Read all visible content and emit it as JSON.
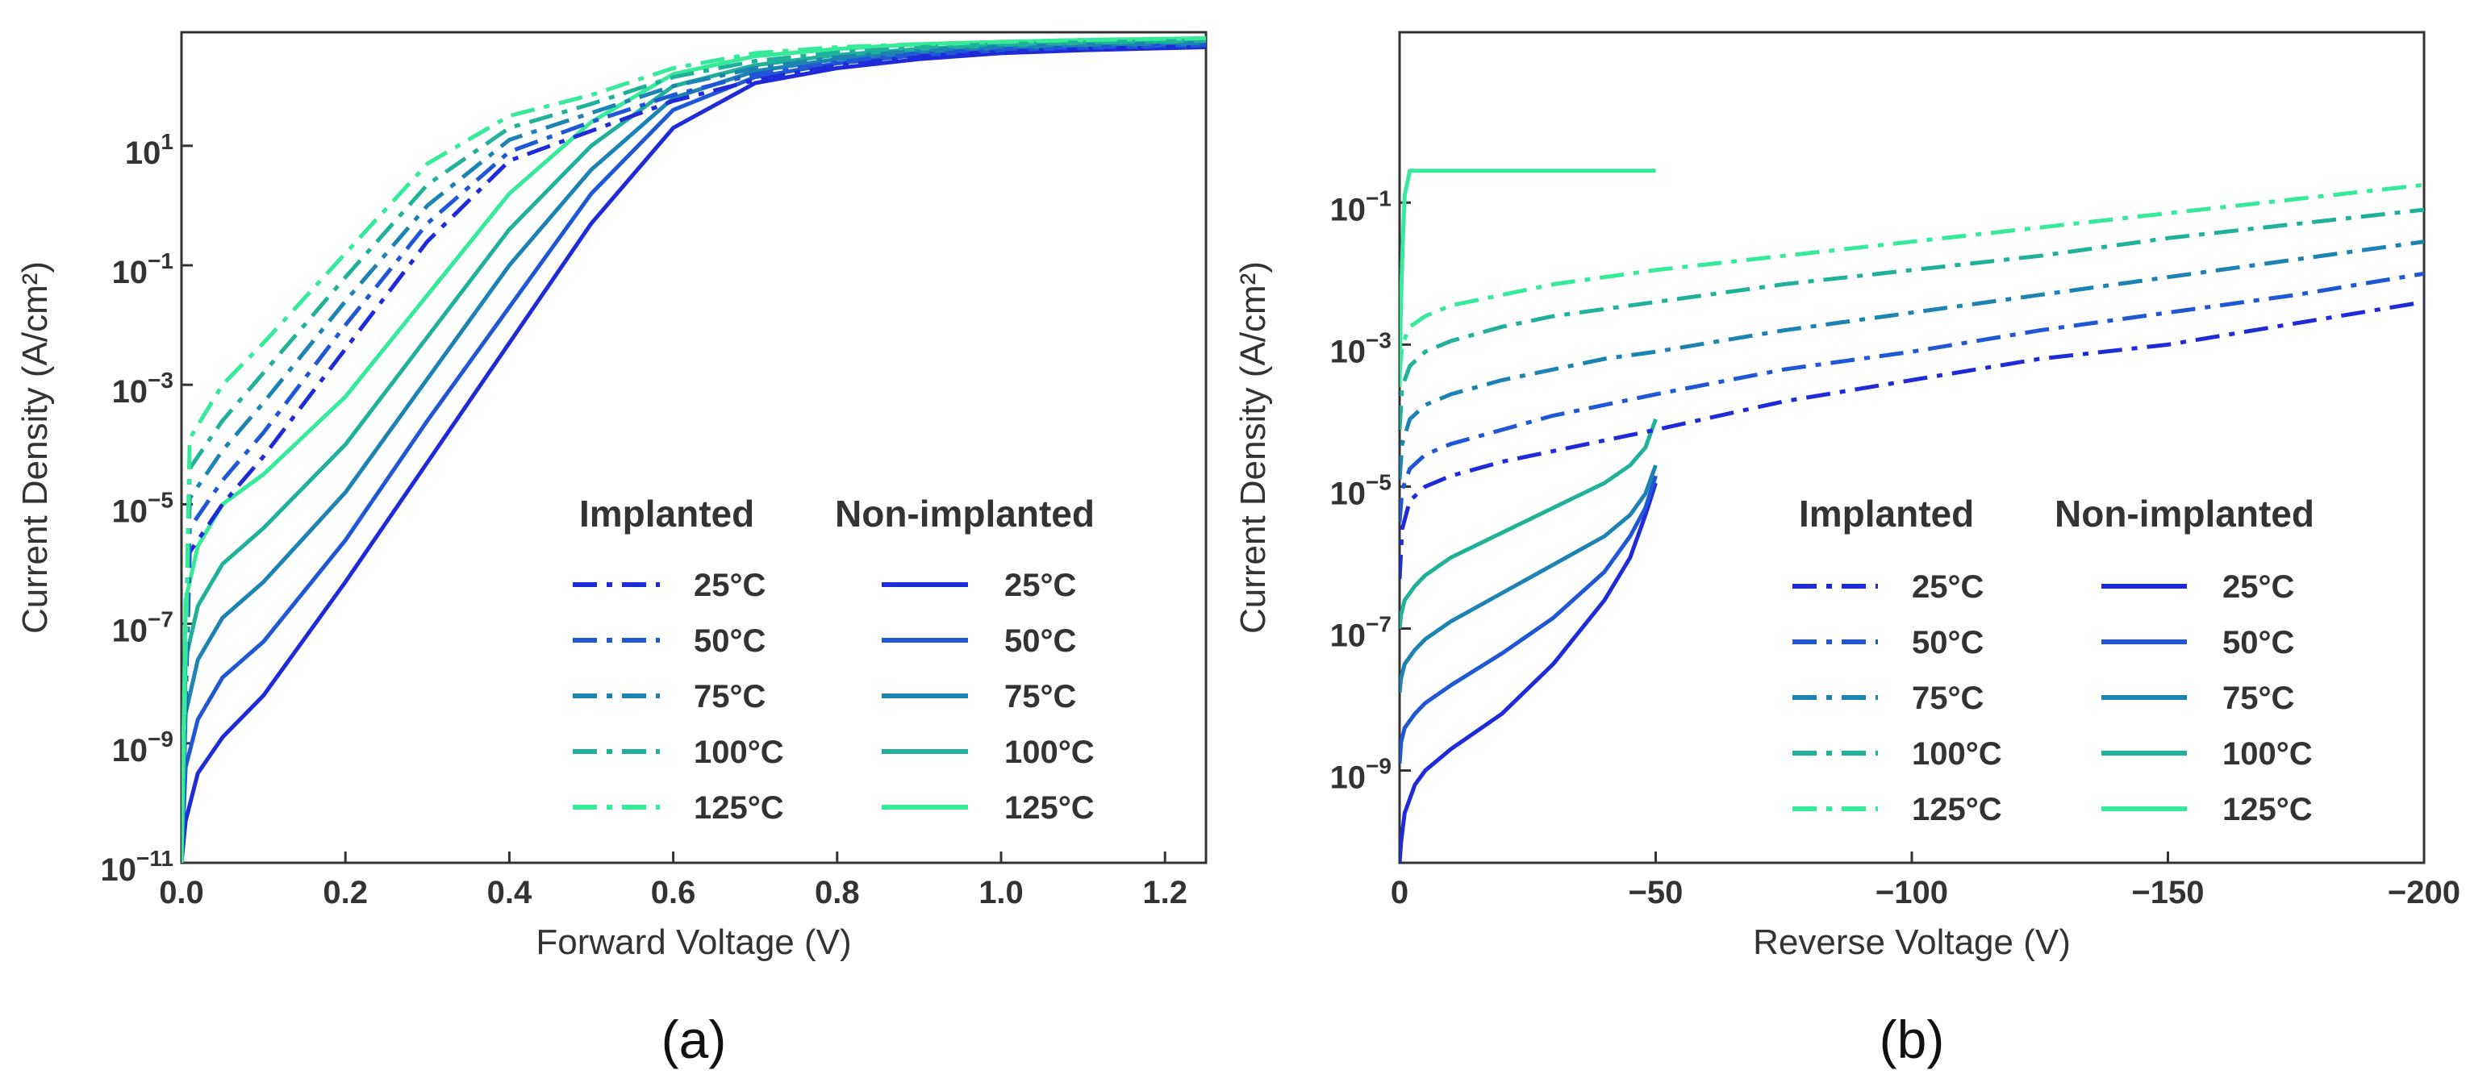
{
  "chart_data": [
    {
      "panel_label": "(a)",
      "type": "line",
      "xlabel": "Forward Voltage (V)",
      "ylabel": "Current Density (A/cm²)",
      "xscale": "linear",
      "yscale": "log",
      "xlim": [
        0.0,
        1.25
      ],
      "ylim_exp": [
        -11,
        2.9
      ],
      "x_ticks": [
        0.0,
        0.2,
        0.4,
        0.6,
        0.8,
        1.0,
        1.2
      ],
      "x_tick_labels": [
        "0.0",
        "0.2",
        "0.4",
        "0.6",
        "0.8",
        "1.0",
        "1.2"
      ],
      "y_ticks_exp": [
        -11,
        -9,
        -7,
        -5,
        -3,
        -1,
        1
      ],
      "y_tick_labels": [
        [
          "10",
          "−11"
        ],
        [
          "10",
          "−9"
        ],
        [
          "10",
          "−7"
        ],
        [
          "10",
          "−5"
        ],
        [
          "10",
          "−3"
        ],
        [
          "10",
          "−1"
        ],
        [
          "10",
          "1"
        ]
      ],
      "legend": {
        "placement": "bottom-right",
        "group_titles": [
          "Implanted",
          "Non-implanted"
        ],
        "temperatures": [
          "25°C",
          "50°C",
          "75°C",
          "100°C",
          "125°C"
        ]
      },
      "series_implanted": [
        {
          "name": "25°C",
          "x": [
            0.0,
            0.01,
            0.05,
            0.1,
            0.2,
            0.3,
            0.4,
            0.5,
            0.6,
            0.7,
            0.8,
            0.9,
            1.0,
            1.1,
            1.25
          ],
          "log10_y": [
            -11.0,
            -5.8,
            -5.0,
            -4.2,
            -2.4,
            -0.6,
            0.75,
            1.25,
            1.75,
            2.1,
            2.35,
            2.5,
            2.58,
            2.62,
            2.67
          ]
        },
        {
          "name": "50°C",
          "x": [
            0.0,
            0.01,
            0.05,
            0.1,
            0.2,
            0.3,
            0.4,
            0.5,
            0.6,
            0.7,
            0.8,
            0.9,
            1.0,
            1.1,
            1.25
          ],
          "log10_y": [
            -11.0,
            -5.4,
            -4.6,
            -3.8,
            -2.0,
            -0.3,
            0.9,
            1.4,
            1.85,
            2.2,
            2.4,
            2.55,
            2.62,
            2.65,
            2.69
          ]
        },
        {
          "name": "75°C",
          "x": [
            0.0,
            0.01,
            0.05,
            0.1,
            0.2,
            0.3,
            0.4,
            0.5,
            0.6,
            0.7,
            0.8,
            0.9,
            1.0,
            1.1,
            1.25
          ],
          "log10_y": [
            -11.0,
            -4.9,
            -4.1,
            -3.3,
            -1.6,
            0.0,
            1.1,
            1.55,
            2.0,
            2.3,
            2.48,
            2.6,
            2.66,
            2.69,
            2.72
          ]
        },
        {
          "name": "100°C",
          "x": [
            0.0,
            0.01,
            0.05,
            0.1,
            0.2,
            0.3,
            0.4,
            0.5,
            0.6,
            0.7,
            0.8,
            0.9,
            1.0,
            1.1,
            1.25
          ],
          "log10_y": [
            -11.0,
            -4.4,
            -3.6,
            -2.8,
            -1.2,
            0.35,
            1.3,
            1.7,
            2.15,
            2.42,
            2.56,
            2.65,
            2.7,
            2.73,
            2.76
          ]
        },
        {
          "name": "125°C",
          "x": [
            0.0,
            0.01,
            0.05,
            0.1,
            0.2,
            0.3,
            0.4,
            0.5,
            0.6,
            0.7,
            0.8,
            0.9,
            1.0,
            1.1,
            1.25
          ],
          "log10_y": [
            -11.0,
            -3.9,
            -3.0,
            -2.3,
            -0.8,
            0.7,
            1.5,
            1.85,
            2.3,
            2.55,
            2.65,
            2.7,
            2.74,
            2.77,
            2.8
          ]
        }
      ],
      "series_non_implanted": [
        {
          "name": "25°C",
          "x": [
            0.0,
            0.005,
            0.02,
            0.05,
            0.1,
            0.2,
            0.3,
            0.4,
            0.5,
            0.6,
            0.7,
            0.8,
            0.9,
            1.0,
            1.1,
            1.25
          ],
          "log10_y": [
            -11.0,
            -10.3,
            -9.5,
            -8.9,
            -8.2,
            -6.3,
            -4.3,
            -2.3,
            -0.3,
            1.3,
            2.05,
            2.3,
            2.45,
            2.55,
            2.6,
            2.65
          ]
        },
        {
          "name": "50°C",
          "x": [
            0.0,
            0.005,
            0.02,
            0.05,
            0.1,
            0.2,
            0.3,
            0.4,
            0.5,
            0.6,
            0.7,
            0.8,
            0.9,
            1.0,
            1.1,
            1.25
          ],
          "log10_y": [
            -11.0,
            -9.4,
            -8.6,
            -7.9,
            -7.3,
            -5.6,
            -3.6,
            -1.7,
            0.2,
            1.6,
            2.15,
            2.38,
            2.52,
            2.6,
            2.64,
            2.68
          ]
        },
        {
          "name": "75°C",
          "x": [
            0.0,
            0.005,
            0.02,
            0.05,
            0.1,
            0.2,
            0.3,
            0.4,
            0.5,
            0.6,
            0.7,
            0.8,
            0.9,
            1.0,
            1.1,
            1.25
          ],
          "log10_y": [
            -11.0,
            -8.5,
            -7.6,
            -6.9,
            -6.3,
            -4.8,
            -2.9,
            -1.0,
            0.6,
            1.8,
            2.25,
            2.45,
            2.57,
            2.64,
            2.68,
            2.71
          ]
        },
        {
          "name": "100°C",
          "x": [
            0.0,
            0.005,
            0.02,
            0.05,
            0.1,
            0.2,
            0.3,
            0.4,
            0.5,
            0.6,
            0.7,
            0.8,
            0.9,
            1.0,
            1.1,
            1.25
          ],
          "log10_y": [
            -11.0,
            -7.6,
            -6.7,
            -6.0,
            -5.4,
            -4.0,
            -2.2,
            -0.4,
            1.0,
            2.0,
            2.35,
            2.52,
            2.62,
            2.68,
            2.72,
            2.75
          ]
        },
        {
          "name": "125°C",
          "x": [
            0.0,
            0.005,
            0.02,
            0.05,
            0.1,
            0.2,
            0.3,
            0.4,
            0.5,
            0.6,
            0.7,
            0.8,
            0.9,
            1.0,
            1.1,
            1.25
          ],
          "log10_y": [
            -11.0,
            -6.6,
            -5.7,
            -5.0,
            -4.5,
            -3.2,
            -1.5,
            0.2,
            1.4,
            2.2,
            2.5,
            2.62,
            2.7,
            2.74,
            2.77,
            2.8
          ]
        }
      ]
    },
    {
      "panel_label": "(b)",
      "type": "line",
      "xlabel": "Reverse Voltage (V)",
      "ylabel": "Current Density (A/cm²)",
      "xscale": "linear",
      "yscale": "log",
      "xlim": [
        0,
        -200
      ],
      "ylim_exp": [
        -10.3,
        1.4
      ],
      "x_ticks": [
        0,
        -50,
        -100,
        -150,
        -200
      ],
      "x_tick_labels": [
        "0",
        "−50",
        "−100",
        "−150",
        "−200"
      ],
      "y_ticks_exp": [
        -9,
        -7,
        -5,
        -3,
        -1
      ],
      "y_tick_labels": [
        [
          "10",
          "−9"
        ],
        [
          "10",
          "−7"
        ],
        [
          "10",
          "−5"
        ],
        [
          "10",
          "−3"
        ],
        [
          "10",
          "−1"
        ]
      ],
      "legend": {
        "placement": "bottom-right",
        "group_titles": [
          "Implanted",
          "Non-implanted"
        ],
        "temperatures": [
          "25°C",
          "50°C",
          "75°C",
          "100°C",
          "125°C"
        ]
      },
      "series_implanted": [
        {
          "name": "25°C",
          "x": [
            0,
            -0.5,
            -2,
            -5,
            -10,
            -20,
            -30,
            -40,
            -50,
            -75,
            -100,
            -125,
            -150,
            -175,
            -200
          ],
          "log10_y": [
            -6.3,
            -5.6,
            -5.2,
            -5.0,
            -4.85,
            -4.65,
            -4.5,
            -4.35,
            -4.2,
            -3.8,
            -3.5,
            -3.2,
            -3.0,
            -2.7,
            -2.4
          ]
        },
        {
          "name": "50°C",
          "x": [
            0,
            -0.5,
            -2,
            -5,
            -10,
            -20,
            -30,
            -40,
            -50,
            -75,
            -100,
            -125,
            -150,
            -175,
            -200
          ],
          "log10_y": [
            -5.5,
            -5.05,
            -4.75,
            -4.55,
            -4.4,
            -4.2,
            -4.0,
            -3.85,
            -3.7,
            -3.35,
            -3.1,
            -2.8,
            -2.55,
            -2.3,
            -2.0
          ]
        },
        {
          "name": "75°C",
          "x": [
            0,
            -0.5,
            -2,
            -5,
            -10,
            -20,
            -30,
            -40,
            -50,
            -75,
            -100,
            -125,
            -150,
            -175,
            -200
          ],
          "log10_y": [
            -4.9,
            -4.4,
            -4.05,
            -3.85,
            -3.7,
            -3.5,
            -3.35,
            -3.2,
            -3.1,
            -2.8,
            -2.55,
            -2.3,
            -2.05,
            -1.8,
            -1.55
          ]
        },
        {
          "name": "100°C",
          "x": [
            0,
            -0.5,
            -2,
            -5,
            -10,
            -20,
            -30,
            -40,
            -50,
            -75,
            -100,
            -125,
            -150,
            -175,
            -200
          ],
          "log10_y": [
            -4.2,
            -3.6,
            -3.3,
            -3.1,
            -2.95,
            -2.75,
            -2.6,
            -2.5,
            -2.4,
            -2.15,
            -1.95,
            -1.75,
            -1.5,
            -1.3,
            -1.1
          ]
        },
        {
          "name": "125°C",
          "x": [
            0,
            -0.5,
            -2,
            -5,
            -10,
            -20,
            -30,
            -40,
            -50,
            -75,
            -100,
            -125,
            -150,
            -175,
            -200
          ],
          "log10_y": [
            -3.4,
            -3.0,
            -2.75,
            -2.6,
            -2.45,
            -2.3,
            -2.15,
            -2.05,
            -1.95,
            -1.75,
            -1.55,
            -1.35,
            -1.15,
            -0.95,
            -0.75
          ]
        }
      ],
      "series_non_implanted": [
        {
          "name": "25°C",
          "x": [
            0,
            -0.3,
            -1,
            -3,
            -5,
            -10,
            -20,
            -30,
            -40,
            -45,
            -48,
            -50
          ],
          "log10_y": [
            -10.3,
            -10.0,
            -9.6,
            -9.2,
            -9.0,
            -8.7,
            -8.2,
            -7.5,
            -6.6,
            -6.0,
            -5.4,
            -4.95
          ]
        },
        {
          "name": "50°C",
          "x": [
            0,
            -0.3,
            -1,
            -3,
            -5,
            -10,
            -20,
            -30,
            -40,
            -45,
            -48,
            -50
          ],
          "log10_y": [
            -8.9,
            -8.6,
            -8.4,
            -8.2,
            -8.05,
            -7.8,
            -7.35,
            -6.85,
            -6.2,
            -5.7,
            -5.3,
            -4.85
          ]
        },
        {
          "name": "75°C",
          "x": [
            0,
            -0.3,
            -1,
            -3,
            -5,
            -10,
            -20,
            -30,
            -40,
            -45,
            -48,
            -50
          ],
          "log10_y": [
            -7.9,
            -7.7,
            -7.5,
            -7.3,
            -7.15,
            -6.9,
            -6.5,
            -6.1,
            -5.7,
            -5.4,
            -5.1,
            -4.7
          ]
        },
        {
          "name": "100°C",
          "x": [
            0,
            -0.3,
            -1,
            -3,
            -5,
            -10,
            -20,
            -30,
            -40,
            -45,
            -48,
            -50
          ],
          "log10_y": [
            -7.0,
            -6.8,
            -6.6,
            -6.4,
            -6.25,
            -6.0,
            -5.65,
            -5.3,
            -4.95,
            -4.7,
            -4.45,
            -4.05
          ]
        },
        {
          "name": "125°C",
          "x": [
            0,
            -0.2,
            -0.6,
            -1,
            -2,
            -50
          ],
          "log10_y": [
            -3.6,
            -2.6,
            -1.6,
            -0.9,
            -0.55,
            -0.55
          ]
        }
      ]
    }
  ],
  "colors": {
    "temperature_colors": [
      "#1f2bd8",
      "#1f57d5",
      "#1d83b3",
      "#20b19a",
      "#35ea98"
    ],
    "axis": "#333333",
    "text": "#333333"
  }
}
